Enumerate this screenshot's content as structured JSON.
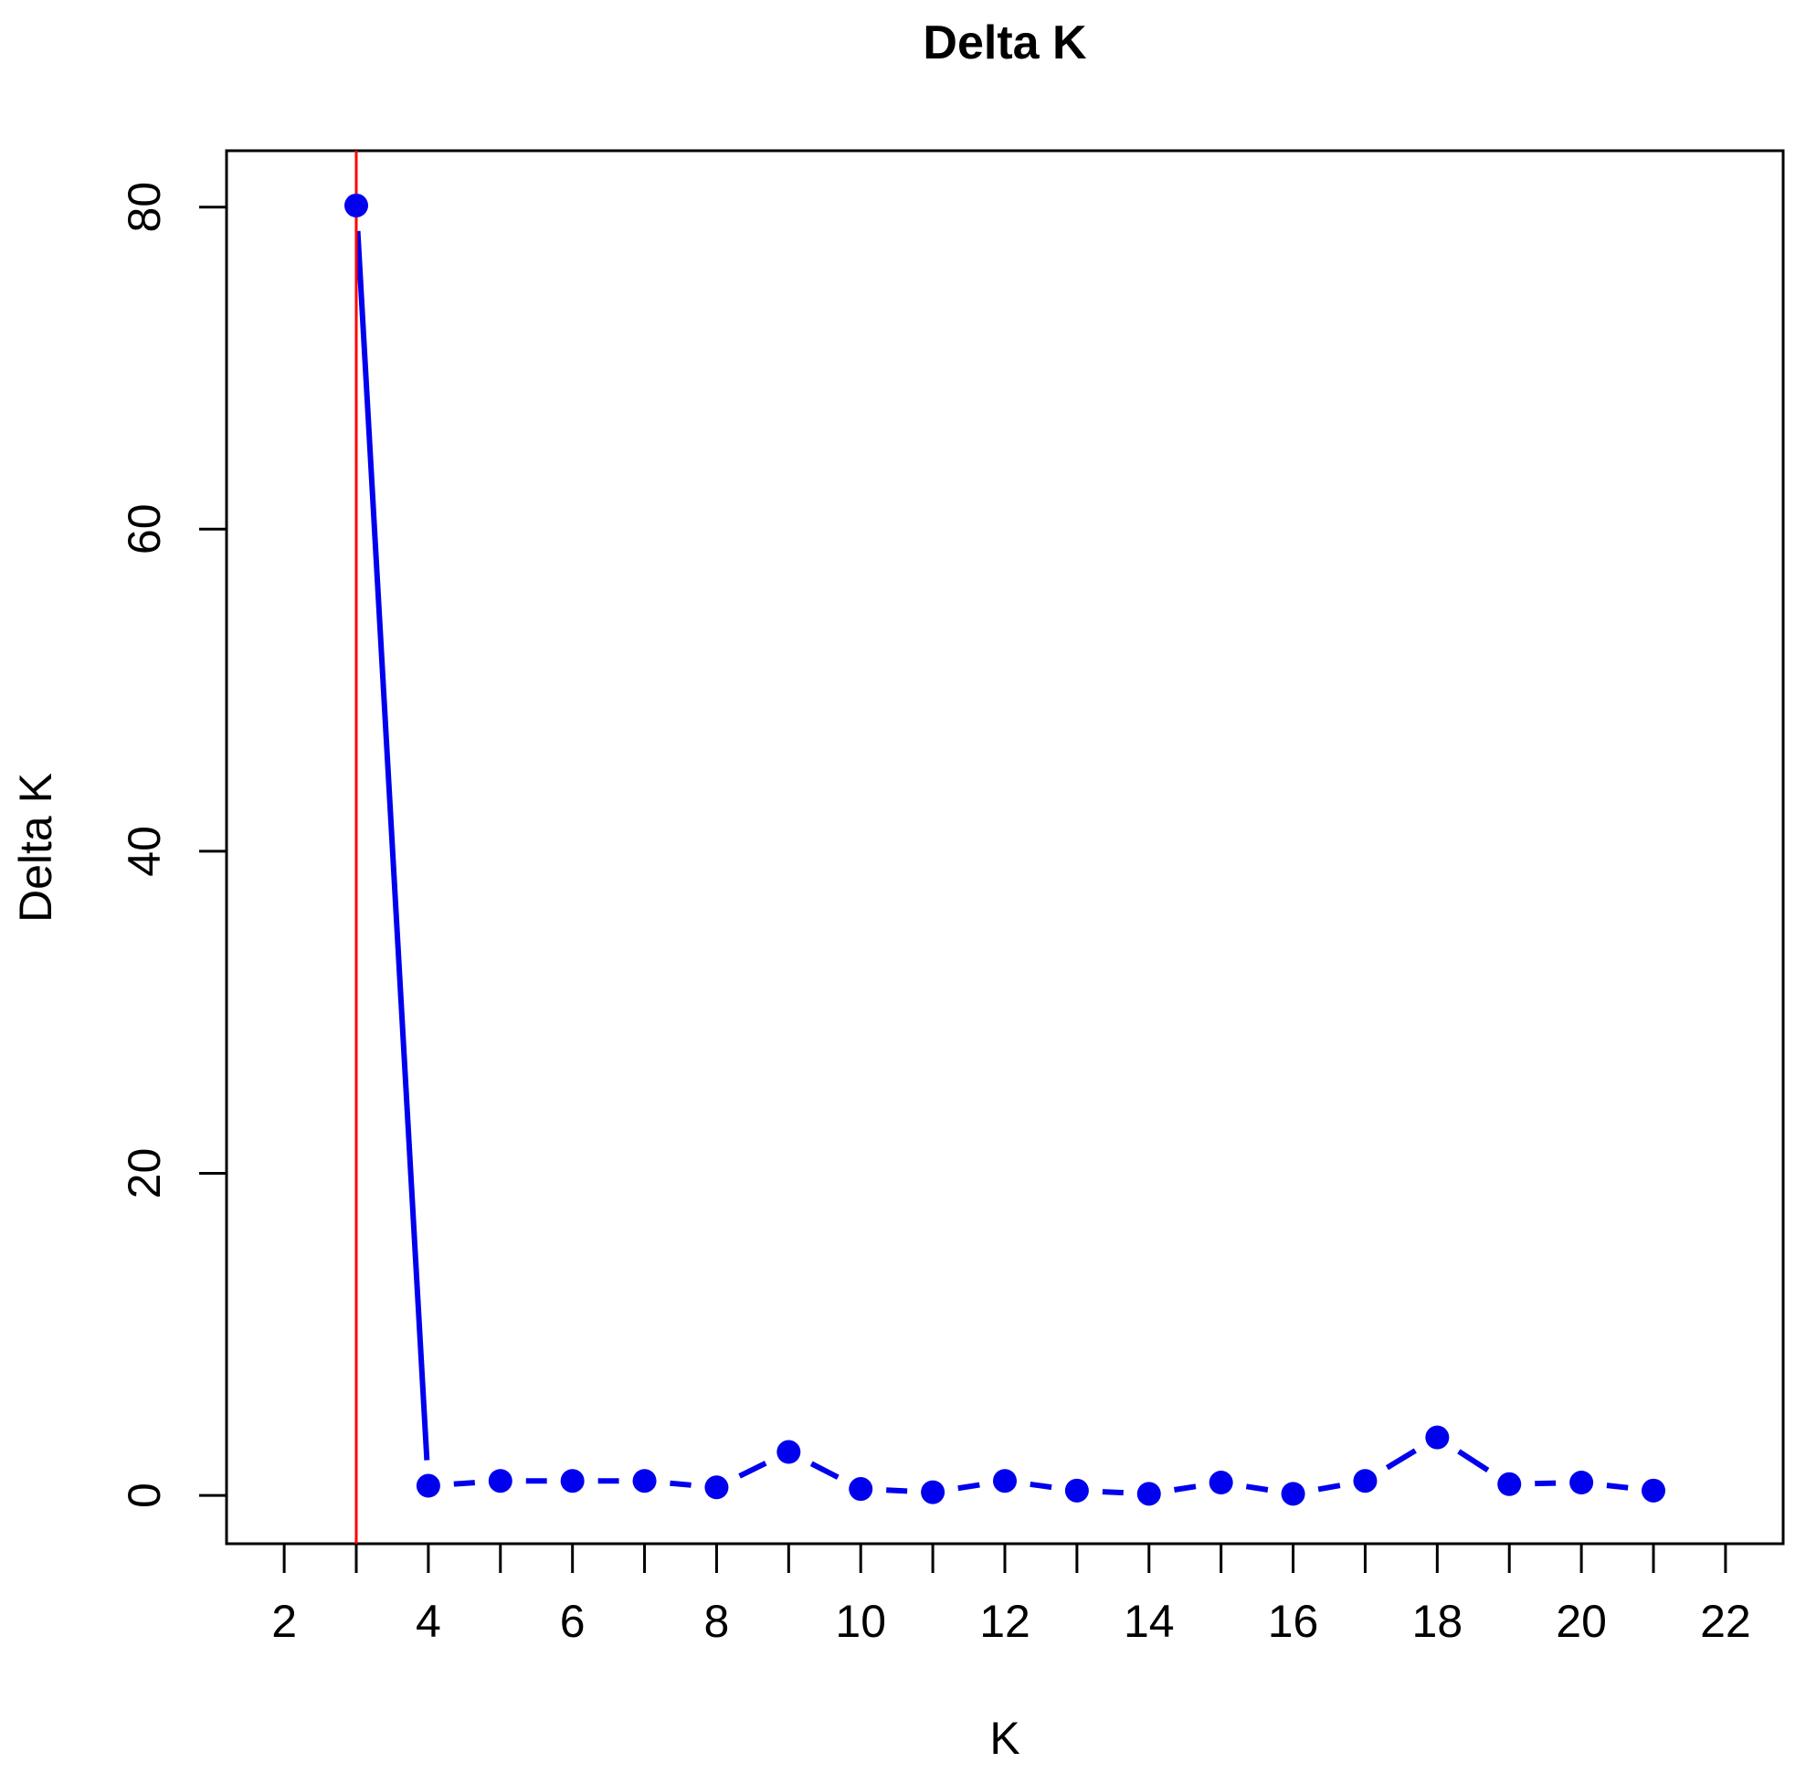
{
  "chart_data": {
    "type": "line",
    "title": "Delta K",
    "xlabel": "K",
    "ylabel": "Delta K",
    "xlim": [
      1.2,
      22.8
    ],
    "ylim": [
      -3,
      83.5
    ],
    "xticks": [
      2,
      4,
      6,
      8,
      10,
      12,
      14,
      16,
      18,
      20,
      22
    ],
    "xminor_ticks": [
      3,
      5,
      7,
      9,
      11,
      13,
      15,
      17,
      19,
      21
    ],
    "yticks": [
      0,
      20,
      40,
      60,
      80
    ],
    "x": [
      3,
      4,
      5,
      6,
      7,
      8,
      9,
      10,
      11,
      12,
      13,
      14,
      15,
      16,
      17,
      18,
      19,
      20,
      21
    ],
    "values": [
      80.1,
      0.6,
      0.9,
      0.9,
      0.9,
      0.5,
      2.7,
      0.4,
      0.2,
      0.9,
      0.3,
      0.1,
      0.8,
      0.1,
      0.9,
      3.6,
      0.7,
      0.8,
      0.3
    ],
    "vline_x": 3,
    "grid": false,
    "colors": {
      "series": "#0000ee",
      "vline": "#ff0000",
      "axes": "#000000"
    }
  }
}
